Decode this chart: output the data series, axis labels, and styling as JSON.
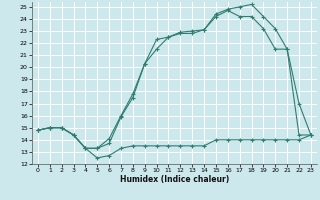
{
  "xlabel": "Humidex (Indice chaleur)",
  "bg_color": "#cce8ed",
  "grid_color": "#ffffff",
  "line_color": "#2e7d6e",
  "xlim": [
    -0.5,
    23.5
  ],
  "ylim": [
    12,
    25.4
  ],
  "xticks": [
    0,
    1,
    2,
    3,
    4,
    5,
    6,
    7,
    8,
    9,
    10,
    11,
    12,
    13,
    14,
    15,
    16,
    17,
    18,
    19,
    20,
    21,
    22,
    23
  ],
  "yticks": [
    12,
    13,
    14,
    15,
    16,
    17,
    18,
    19,
    20,
    21,
    22,
    23,
    24,
    25
  ],
  "line1_x": [
    0,
    1,
    2,
    3,
    4,
    5,
    6,
    7,
    8,
    9,
    10,
    11,
    12,
    13,
    14,
    15,
    16,
    17,
    18,
    19,
    20,
    21,
    22,
    23
  ],
  "line1_y": [
    14.8,
    15.0,
    15.0,
    14.4,
    13.3,
    13.3,
    13.7,
    15.9,
    17.5,
    20.3,
    22.3,
    22.5,
    22.9,
    23.0,
    23.1,
    24.4,
    24.8,
    25.0,
    25.2,
    24.2,
    23.2,
    21.5,
    17.0,
    14.4
  ],
  "line2_x": [
    0,
    1,
    2,
    3,
    4,
    5,
    6,
    7,
    8,
    9,
    10,
    11,
    12,
    13,
    14,
    15,
    16,
    17,
    18,
    19,
    20,
    21,
    22,
    23
  ],
  "line2_y": [
    14.8,
    15.0,
    15.0,
    14.4,
    13.3,
    13.3,
    14.1,
    16.0,
    17.8,
    20.3,
    21.5,
    22.5,
    22.8,
    22.8,
    23.1,
    24.2,
    24.7,
    24.2,
    24.2,
    23.2,
    21.5,
    21.5,
    14.4,
    14.4
  ],
  "line3_x": [
    0,
    1,
    2,
    3,
    4,
    5,
    6,
    7,
    8,
    9,
    10,
    11,
    12,
    13,
    14,
    15,
    16,
    17,
    18,
    19,
    20,
    21,
    22,
    23
  ],
  "line3_y": [
    14.8,
    15.0,
    15.0,
    14.4,
    13.3,
    12.5,
    12.7,
    13.3,
    13.5,
    13.5,
    13.5,
    13.5,
    13.5,
    13.5,
    13.5,
    14.0,
    14.0,
    14.0,
    14.0,
    14.0,
    14.0,
    14.0,
    14.0,
    14.4
  ]
}
